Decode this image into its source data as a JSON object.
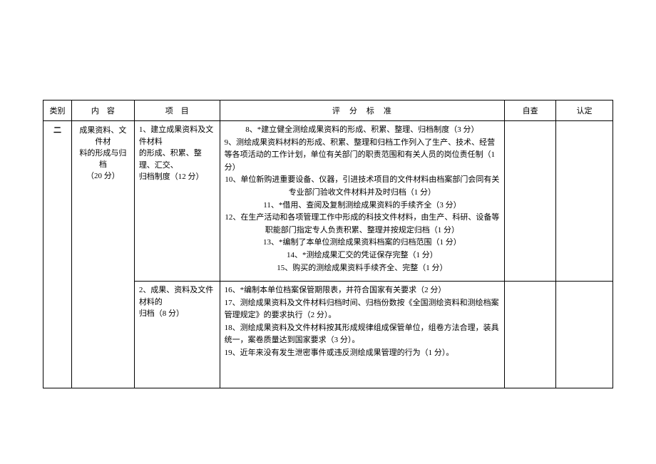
{
  "headers": {
    "category": "类别",
    "content": "内　容",
    "item": "项　目",
    "criteria": "评　分　标　准",
    "selfCheck": "自查",
    "recognize": "认定"
  },
  "rows": [
    {
      "category": "二",
      "content_l1": "成果资料、文件材",
      "content_l2": "料的形成与归档",
      "content_l3": "（20 分）",
      "item_l1": "1、建立成果资料及文件材料",
      "item_l2": "的形成、积累、整理、汇交、",
      "item_l3": "归档制度（12 分）",
      "criteria": [
        {
          "text": "8、*建立健全测绘成果资料的形成、积累、整理、归档制度（3 分）",
          "align": "center"
        },
        {
          "text": "9、测绘成果资料材料的形成、积累、整理和归档工作列入了生产、技术、经营等各项活动的工作计划，单位有关部门的职责范围和有关人员的岗位责任制（1 分）",
          "align": "left"
        },
        {
          "text": "10、单位新购进重要设备、仪器，引进技术项目的文件材料由档案部门会同有关专业部门验收文件材料并及时归档（1 分）",
          "align": "center"
        },
        {
          "text": "11、*借用、查阅及复制测绘成果资料的手续齐全（3 分）",
          "align": "center"
        },
        {
          "text": "12、在生产活动和各项管理工作中形成的科技文件材料，由生产、科研、设备等职能部门指定专人负责积累、整理并按规定归档（1 分）",
          "align": "center"
        },
        {
          "text": "13、*编制了本单位测绘成果资料档案的归档范围（1 分）",
          "align": "center"
        },
        {
          "text": "14、*测绘成果汇交的凭证保存完整（1 分）",
          "align": "center"
        },
        {
          "text": "15、购买的测绘成果资料手续齐全、完整（1 分）",
          "align": "center"
        }
      ]
    },
    {
      "item_l1": "2、成果、资料及文件材料的",
      "item_l2": "归档（8 分）",
      "criteria": [
        {
          "text": "16、*编制本单位档案保管期限表，并符合国家有关要求（2 分）",
          "align": "left"
        },
        {
          "text": "17、测绘成果资料及文件材料归档时间、归档份数按《全国测绘资料和测绘档案管理规定》的要求执行（2 分）。",
          "align": "left"
        },
        {
          "text": "18、测绘成果资料及文件材料按其形成规律组成保管单位，组卷方法合理，装具统一，案卷质量达到国家要求（3 分）。",
          "align": "left"
        },
        {
          "text": "19、近年来没有发生泄密事件或违反测绘成果管理的行为（1 分）。",
          "align": "left"
        }
      ]
    }
  ]
}
